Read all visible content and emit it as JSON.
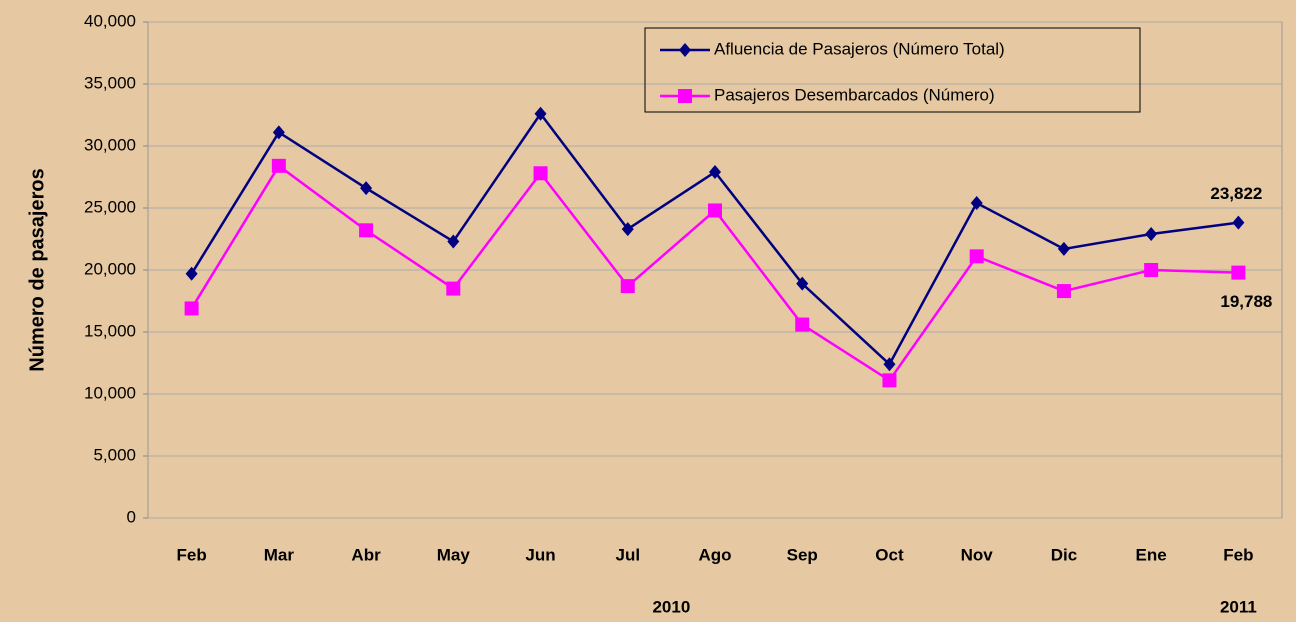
{
  "chart_data": {
    "type": "line",
    "y_label": "Número de pasajeros",
    "categories": [
      "Feb",
      "Mar",
      "Abr",
      "May",
      "Jun",
      "Jul",
      "Ago",
      "Sep",
      "Oct",
      "Nov",
      "Dic",
      "Ene",
      "Feb"
    ],
    "annotations": [
      "2010",
      "2011"
    ],
    "series": [
      {
        "name": "Afluencia de Pasajeros (Número Total)",
        "color": "#000080",
        "marker": "diamond",
        "values": [
          19700,
          31100,
          26600,
          22300,
          32600,
          23300,
          27900,
          18900,
          12400,
          25400,
          21700,
          22900,
          23822
        ],
        "value_labels": [
          null,
          null,
          null,
          null,
          null,
          null,
          null,
          null,
          null,
          null,
          null,
          null,
          "23,822"
        ]
      },
      {
        "name": "Pasajeros Desembarcados (Número)",
        "color": "#ff00ff",
        "marker": "square",
        "values": [
          16900,
          28400,
          23200,
          18500,
          27800,
          18700,
          24800,
          15600,
          11100,
          21100,
          18300,
          20000,
          19788
        ],
        "value_labels": [
          null,
          null,
          null,
          null,
          null,
          null,
          null,
          null,
          null,
          null,
          null,
          null,
          "19,788"
        ]
      }
    ],
    "ylim": [
      0,
      40000
    ],
    "yticks": [
      0,
      {
        "value": 5000,
        "label": "5,000"
      },
      {
        "value": 10000,
        "label": "10,000"
      },
      {
        "value": 15000,
        "label": "15,000"
      },
      {
        "value": 20000,
        "label": "20,000"
      },
      {
        "value": 25000,
        "label": "25,000"
      },
      {
        "value": 30000,
        "label": "30,000"
      },
      {
        "value": 35000,
        "label": "35,000"
      },
      {
        "value": 40000,
        "label": "40,000"
      }
    ],
    "grid": true,
    "legend": "upper right"
  }
}
